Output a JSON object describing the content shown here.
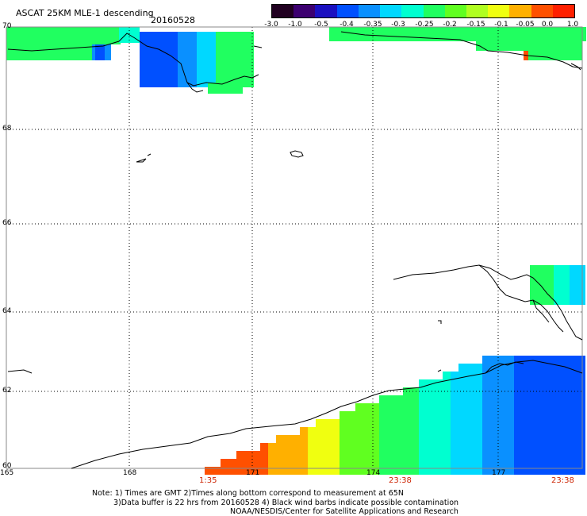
{
  "header": {
    "title": "ASCAT 25KM MLE-1 descending",
    "date": "20160528"
  },
  "colorbar": {
    "labels": [
      "-3.0",
      "-1.0",
      "-0.5",
      "-0.4",
      "-0.35",
      "-0.3",
      "-0.25",
      "-0.2",
      "-0.15",
      "-0.1",
      "-0.05",
      "0.0",
      "1.0"
    ],
    "colors": [
      "#200020",
      "#3c0070",
      "#1a10c0",
      "#0050ff",
      "#0a90ff",
      "#00d8ff",
      "#00ffd0",
      "#20ff60",
      "#60ff20",
      "#b0ff20",
      "#f0ff10",
      "#ffb000",
      "#ff5000",
      "#ff2000"
    ]
  },
  "map": {
    "lat_labels": [
      "70",
      "68",
      "66",
      "64",
      "62",
      "60"
    ],
    "lon_labels": [
      "165",
      "168",
      "171",
      "174",
      "177"
    ],
    "time_labels": [
      "1:35",
      "23:38",
      "23:38"
    ]
  },
  "notes": {
    "line1": "Note: 1) Times are GMT 2)Times along bottom correspond to measurement at 65N",
    "line2": "3)Data buffer is 22 hrs from 20160528 4) Black wind barbs indicate possible contamination",
    "line3": "NOAA/NESDIS/Center for Satellite Applications and Research"
  }
}
